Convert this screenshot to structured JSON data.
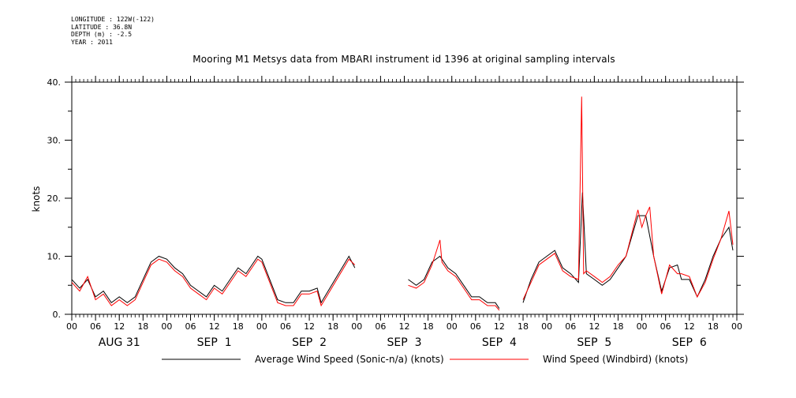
{
  "metadata": {
    "longitude": "LONGITUDE : 122W(-122)",
    "latitude": "LATITUDE : 36.8N",
    "depth": "DEPTH (m) : -2.5",
    "year": "YEAR : 2011"
  },
  "chart_data": {
    "type": "line",
    "title": "Mooring M1 Metsys data from MBARI instrument id 1396 at original sampling intervals",
    "xlabel": "",
    "ylabel": "knots",
    "x_unit": "hours since 2011-08-31 00:00",
    "xlim": [
      0,
      168
    ],
    "ylim": [
      0,
      40
    ],
    "y_ticks": [
      "0.",
      "10.",
      "20.",
      "30.",
      "40."
    ],
    "hour_tick_labels": [
      "00",
      "06",
      "12",
      "18",
      "00",
      "06",
      "12",
      "18",
      "00",
      "06",
      "12",
      "18",
      "00",
      "06",
      "12",
      "18",
      "00",
      "06",
      "12",
      "18",
      "00",
      "06",
      "12",
      "18",
      "00",
      "06",
      "12",
      "18",
      "00"
    ],
    "day_labels": [
      "AUG 31",
      "SEP  1",
      "SEP  2",
      "SEP  3",
      "SEP  4",
      "SEP  5",
      "SEP  6"
    ],
    "grid": false,
    "legend_position": "bottom",
    "series": [
      {
        "name": "Average Wind Speed (Sonic-n/a) (knots)",
        "color": "#000000",
        "segments": [
          [
            [
              0,
              6
            ],
            [
              2,
              4.5
            ],
            [
              4,
              6
            ],
            [
              6,
              3
            ],
            [
              8,
              4
            ],
            [
              10,
              2
            ],
            [
              12,
              3
            ],
            [
              14,
              2
            ],
            [
              16,
              3
            ],
            [
              18,
              6
            ],
            [
              20,
              9
            ],
            [
              22,
              10
            ],
            [
              24,
              9.5
            ],
            [
              26,
              8
            ],
            [
              28,
              7
            ],
            [
              30,
              5
            ],
            [
              32,
              4
            ],
            [
              34,
              3
            ],
            [
              36,
              5
            ],
            [
              38,
              4
            ],
            [
              40,
              6
            ],
            [
              42,
              8
            ],
            [
              44,
              7
            ],
            [
              46,
              9
            ],
            [
              47,
              10
            ],
            [
              48,
              9.5
            ],
            [
              50,
              6
            ],
            [
              52,
              2.5
            ],
            [
              54,
              2
            ],
            [
              56,
              2
            ],
            [
              58,
              4
            ],
            [
              60,
              4
            ],
            [
              62,
              4.5
            ],
            [
              63,
              2
            ],
            [
              70,
              10
            ],
            [
              71.5,
              8
            ]
          ],
          [
            [
              85,
              6
            ],
            [
              87,
              5
            ],
            [
              89,
              6
            ],
            [
              91,
              9
            ],
            [
              93,
              10
            ],
            [
              95,
              8
            ],
            [
              97,
              7
            ],
            [
              99,
              5
            ],
            [
              101,
              3
            ],
            [
              103,
              3
            ],
            [
              105,
              2
            ],
            [
              107,
              2
            ],
            [
              108,
              1
            ]
          ],
          [
            [
              114,
              2
            ],
            [
              116,
              6
            ],
            [
              118,
              9
            ],
            [
              120,
              10
            ],
            [
              122,
              11
            ],
            [
              124,
              8
            ],
            [
              126,
              7
            ],
            [
              128,
              5.5
            ],
            [
              129,
              21
            ],
            [
              130,
              7
            ],
            [
              132,
              6
            ],
            [
              134,
              5
            ],
            [
              136,
              6
            ],
            [
              138,
              8
            ],
            [
              140,
              10
            ],
            [
              143,
              17
            ],
            [
              145,
              17
            ],
            [
              147,
              10
            ],
            [
              149,
              4
            ],
            [
              151,
              8
            ],
            [
              153,
              8.5
            ],
            [
              154,
              6
            ],
            [
              156,
              6
            ],
            [
              158,
              3
            ],
            [
              160,
              6
            ],
            [
              162,
              10
            ],
            [
              164,
              13
            ],
            [
              166,
              15
            ],
            [
              167,
              11
            ]
          ]
        ]
      },
      {
        "name": "Wind Speed (Windbird) (knots)",
        "color": "#ff0000",
        "segments": [
          [
            [
              0,
              5.5
            ],
            [
              2,
              4
            ],
            [
              4,
              6.5
            ],
            [
              6,
              2.5
            ],
            [
              8,
              3.5
            ],
            [
              10,
              1.5
            ],
            [
              12,
              2.5
            ],
            [
              14,
              1.5
            ],
            [
              16,
              2.5
            ],
            [
              18,
              5.5
            ],
            [
              20,
              8.5
            ],
            [
              22,
              9.5
            ],
            [
              24,
              9
            ],
            [
              26,
              7.5
            ],
            [
              28,
              6.5
            ],
            [
              30,
              4.5
            ],
            [
              32,
              3.5
            ],
            [
              34,
              2.5
            ],
            [
              36,
              4.5
            ],
            [
              38,
              3.5
            ],
            [
              40,
              5.5
            ],
            [
              42,
              7.5
            ],
            [
              44,
              6.5
            ],
            [
              46,
              8.5
            ],
            [
              47,
              9.5
            ],
            [
              48,
              9
            ],
            [
              50,
              5.5
            ],
            [
              52,
              2
            ],
            [
              54,
              1.5
            ],
            [
              56,
              1.5
            ],
            [
              58,
              3.5
            ],
            [
              60,
              3.5
            ],
            [
              62,
              4
            ],
            [
              63,
              1.5
            ],
            [
              70,
              9.5
            ],
            [
              71.5,
              8.5
            ]
          ],
          [
            [
              85,
              5
            ],
            [
              87,
              4.5
            ],
            [
              89,
              5.5
            ],
            [
              91,
              8.5
            ],
            [
              93,
              12.8
            ],
            [
              93.5,
              9
            ],
            [
              95,
              7.5
            ],
            [
              97,
              6.5
            ],
            [
              99,
              4.5
            ],
            [
              101,
              2.5
            ],
            [
              103,
              2.5
            ],
            [
              105,
              1.5
            ],
            [
              107,
              1.5
            ],
            [
              108,
              0.7
            ]
          ],
          [
            [
              114,
              2.5
            ],
            [
              116,
              5.5
            ],
            [
              118,
              8.5
            ],
            [
              120,
              9.5
            ],
            [
              122,
              10.5
            ],
            [
              124,
              7.5
            ],
            [
              126,
              6.5
            ],
            [
              128,
              6
            ],
            [
              128.8,
              37.5
            ],
            [
              129.3,
              7
            ],
            [
              130,
              7.5
            ],
            [
              132,
              6.5
            ],
            [
              134,
              5.5
            ],
            [
              136,
              6.5
            ],
            [
              138,
              8.5
            ],
            [
              140,
              10
            ],
            [
              143,
              18
            ],
            [
              144,
              15
            ],
            [
              145,
              17
            ],
            [
              146,
              18.5
            ],
            [
              147,
              10
            ],
            [
              149,
              3.5
            ],
            [
              151,
              8.5
            ],
            [
              153,
              7
            ],
            [
              154,
              7
            ],
            [
              156,
              6.5
            ],
            [
              158,
              3
            ],
            [
              160,
              5.5
            ],
            [
              162,
              9.5
            ],
            [
              164,
              13
            ],
            [
              166,
              17.8
            ],
            [
              167,
              12
            ]
          ]
        ]
      }
    ]
  }
}
